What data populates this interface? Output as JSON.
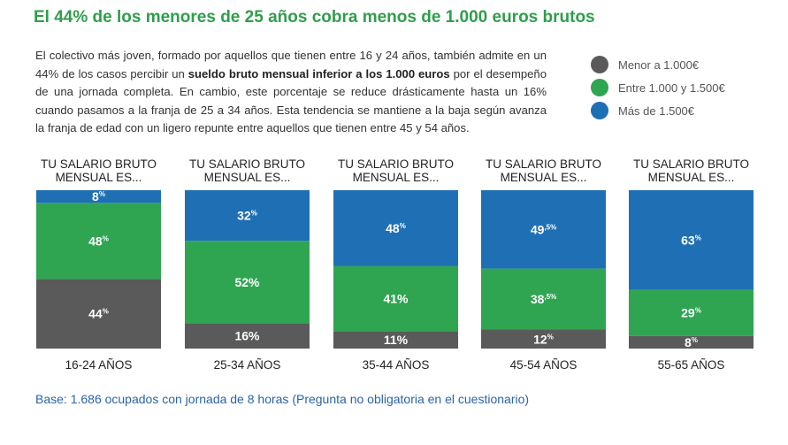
{
  "title": "El 44% de los menores de 25 años cobra menos de 1.000 euros brutos",
  "intro": {
    "before": "El colectivo más joven, formado por aquellos que tienen entre 16 y 24 años, también admite en un 44% de los casos percibir un ",
    "bold": "sueldo bruto mensual inferior a los 1.000 euros",
    "after": " por el desempeño de una jornada completa. En cambio, este porcentaje se reduce drásticamente hasta un 16% cuando pasamos a la franja de 25 a 34 años. Esta tendencia se mantiene a la baja según avanza la franja de edad con un ligero repunte entre aquellos que tienen entre 45 y 54 años."
  },
  "footnote": "Base: 1.686 ocupados con jornada de 8 horas (Pregunta no obligatoria en el cuestionario)",
  "chart_data": {
    "type": "bar",
    "stacked": true,
    "percent_stacked": true,
    "column_title": "TU SALARIO BRUTO MENSUAL ES...",
    "categories": [
      "16-24 AÑOS",
      "25-34 AÑOS",
      "35-44 AÑOS",
      "45-54 AÑOS",
      "55-65 AÑOS"
    ],
    "series": [
      {
        "name": "Menor a 1.000€",
        "color": "#5a5a5a",
        "values": [
          44,
          16,
          11,
          12,
          8
        ],
        "labels": [
          {
            "num": "44",
            "suffix": "%"
          },
          {
            "num": "16%",
            "suffix": ""
          },
          {
            "num": "11%",
            "suffix": ""
          },
          {
            "num": "12",
            "suffix": "%"
          },
          {
            "num": "8",
            "suffix": "%"
          }
        ]
      },
      {
        "name": "Entre 1.000 y 1.500€",
        "color": "#2fa552",
        "values": [
          48,
          52,
          41,
          38.5,
          29
        ],
        "labels": [
          {
            "num": "48",
            "suffix": "%"
          },
          {
            "num": "52%",
            "suffix": ""
          },
          {
            "num": "41%",
            "suffix": ""
          },
          {
            "num": "38",
            "suffix": ",5%"
          },
          {
            "num": "29",
            "suffix": "%"
          }
        ]
      },
      {
        "name": "Más de 1.500€",
        "color": "#1f6fb5",
        "values": [
          8,
          32,
          48,
          49.5,
          63
        ],
        "labels": [
          {
            "num": "8",
            "suffix": "%"
          },
          {
            "num": "32",
            "suffix": "%"
          },
          {
            "num": "48",
            "suffix": "%"
          },
          {
            "num": "49",
            "suffix": ",5%"
          },
          {
            "num": "63",
            "suffix": "%"
          }
        ]
      }
    ],
    "legend_position": "top-right",
    "ylim": [
      0,
      100
    ],
    "grid": false
  }
}
